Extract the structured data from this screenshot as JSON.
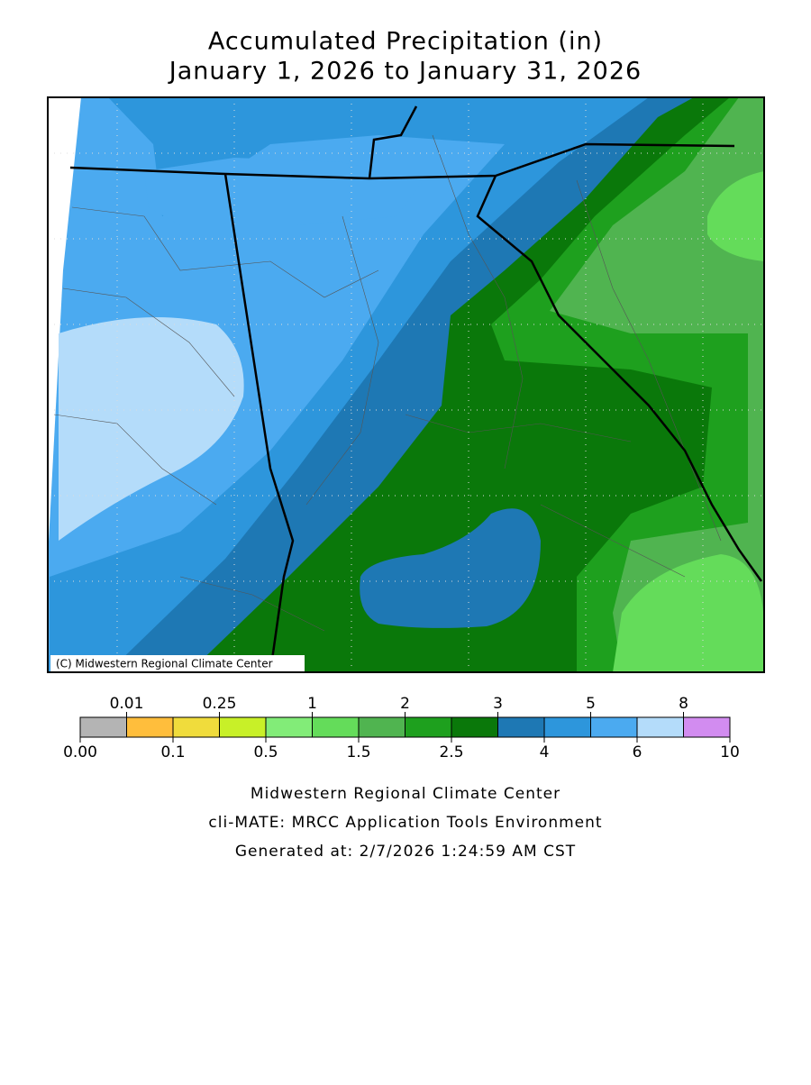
{
  "header": {
    "title_lines": [
      "Accumulated Precipitation (in)",
      "January 1, 2026 to January 31, 2026"
    ]
  },
  "map": {
    "copyright": "(C) Midwestern Regional Climate Center"
  },
  "legend": {
    "labels": [
      "0.00",
      "0.01",
      "0.1",
      "0.25",
      "0.5",
      "1",
      "1.5",
      "2",
      "2.5",
      "3",
      "4",
      "5",
      "6",
      "8",
      "10"
    ],
    "colors": [
      "#b4b4b4",
      "#ffbe3c",
      "#f0dc3c",
      "#c8f028",
      "#82ec78",
      "#64dc5a",
      "#50b450",
      "#1ea01e",
      "#0a780a",
      "#1e78b4",
      "#2d96dc",
      "#4baaf0",
      "#b4dcfa",
      "#d28cf0"
    ]
  },
  "footer": {
    "lines": [
      "Midwestern Regional Climate Center",
      "cli-MATE: MRCC Application Tools Environment",
      "Generated at: 2/7/2026 1:24:59 AM CST"
    ]
  }
}
